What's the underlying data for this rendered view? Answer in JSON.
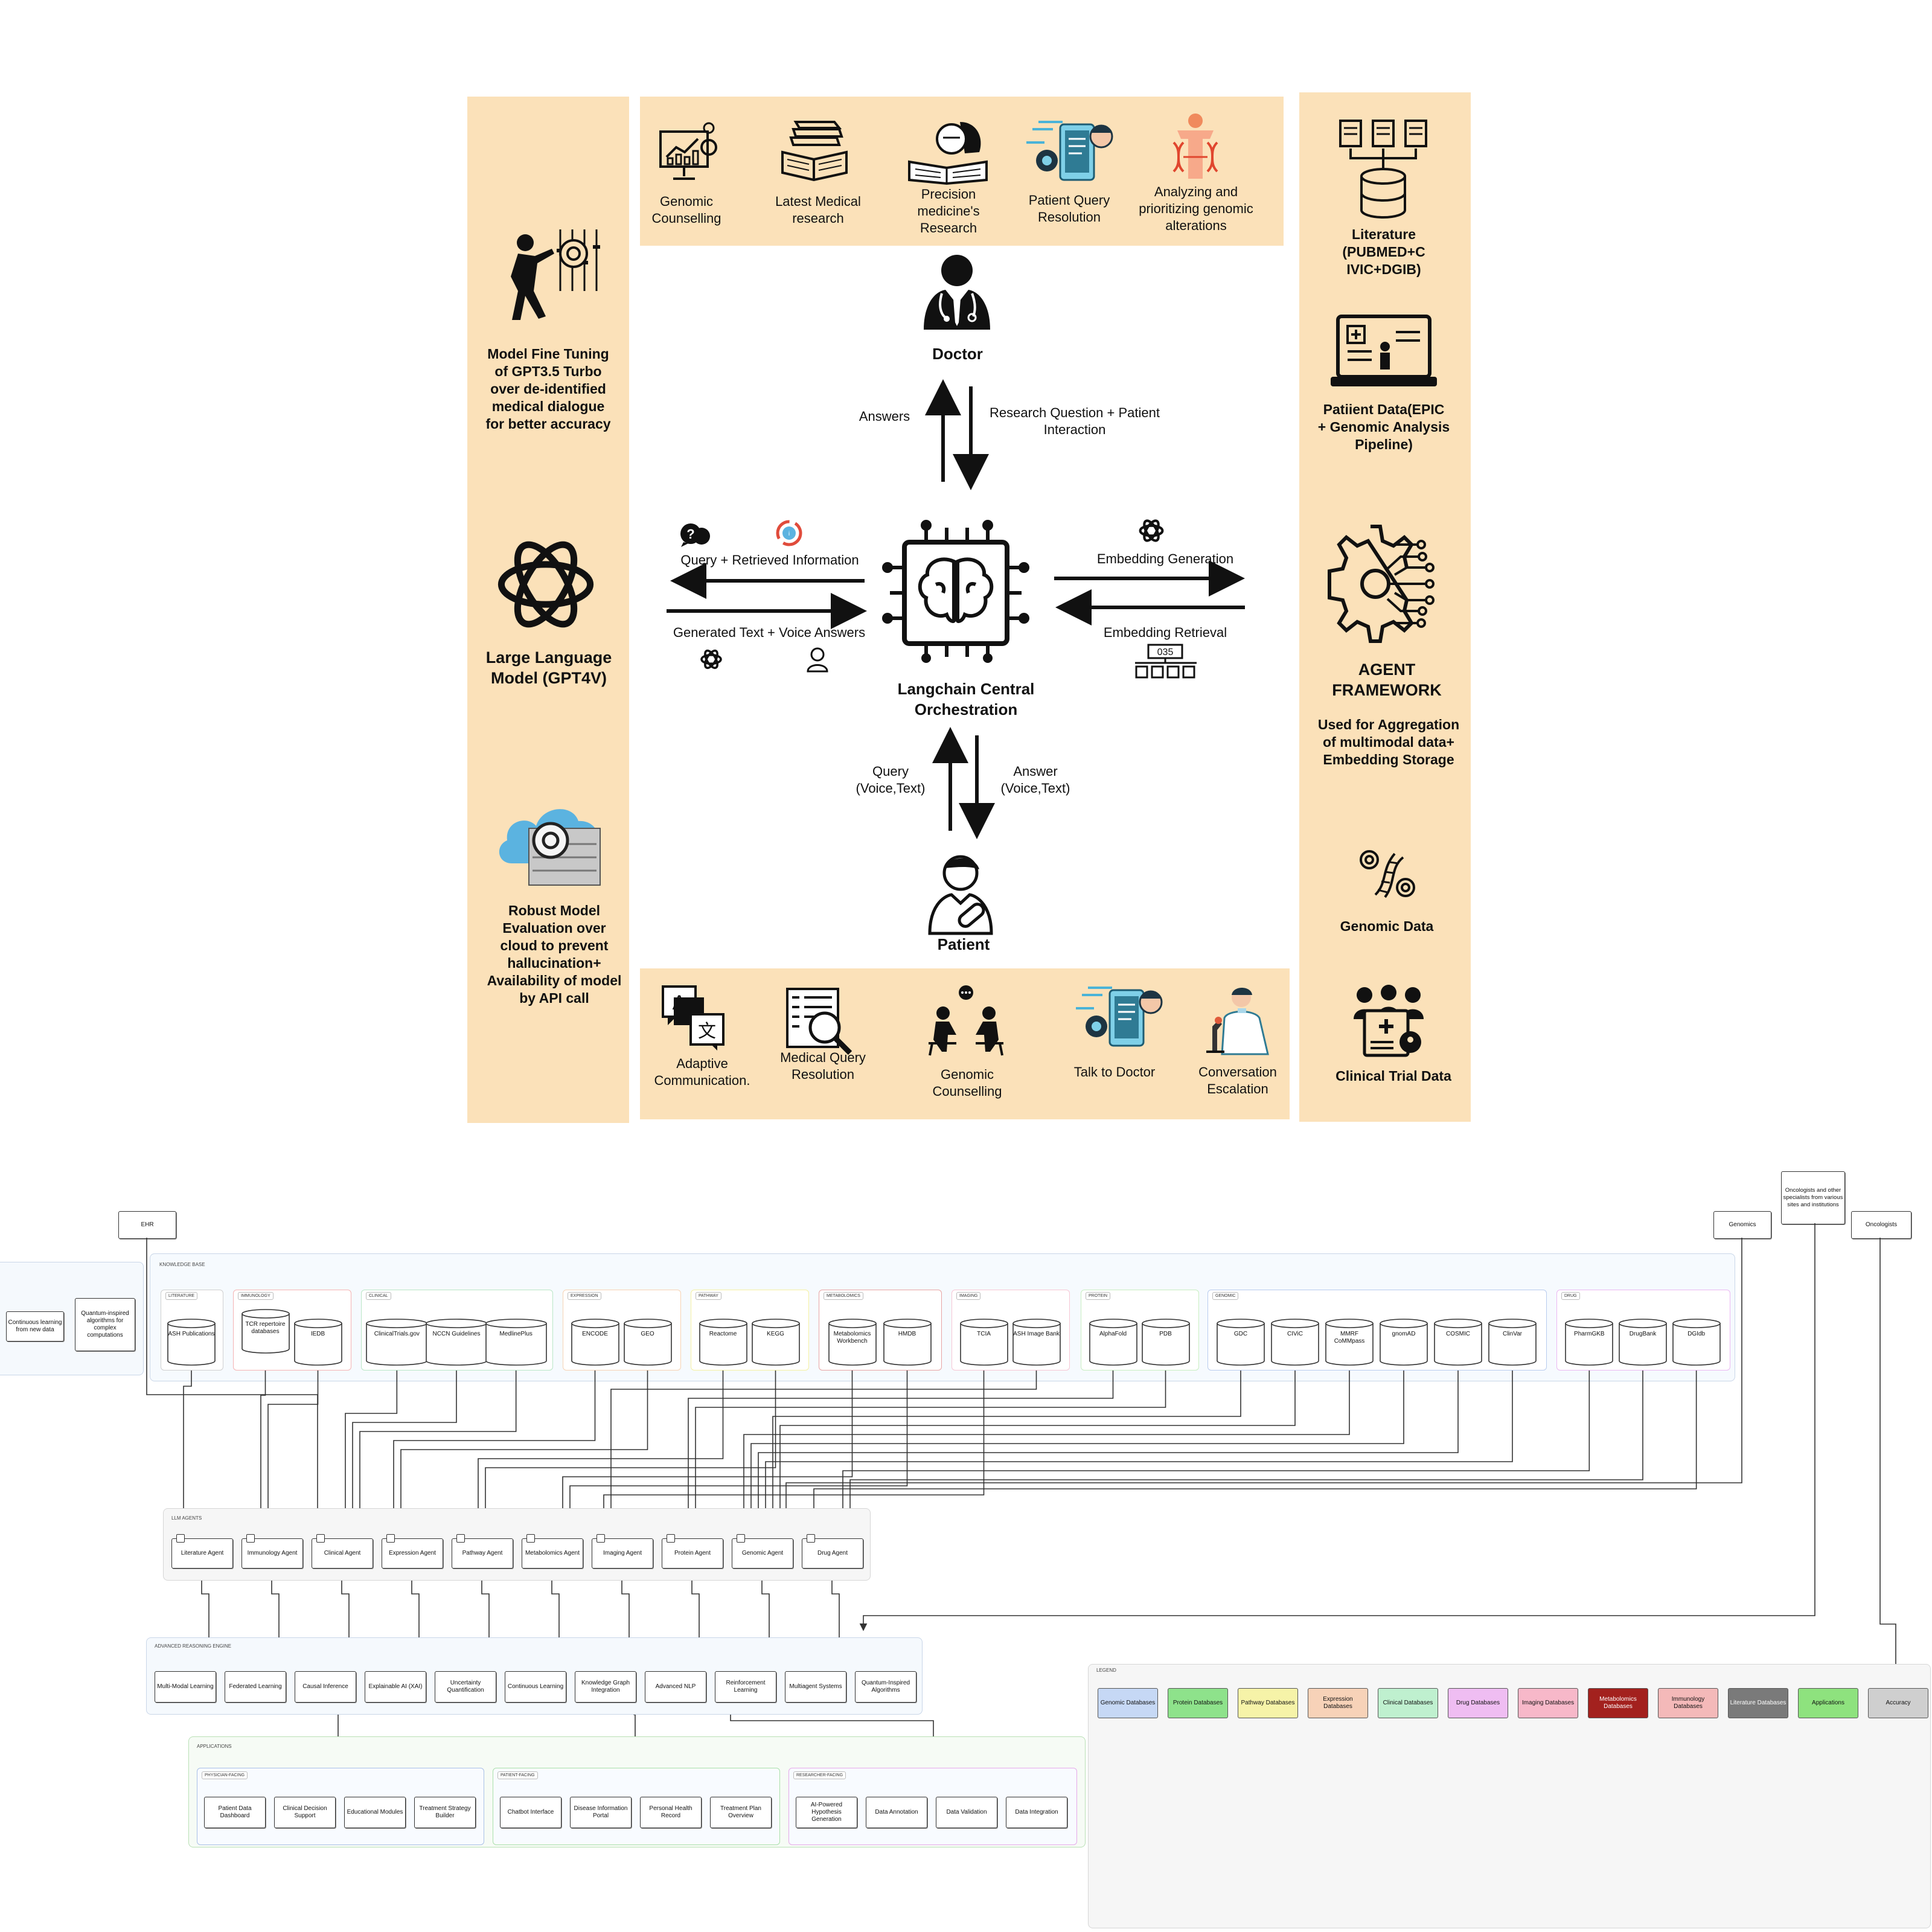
{
  "left_panel": {
    "finetune": "Model Fine Tuning of  GPT3.5 Turbo over de-identified medical dialogue for better accuracy",
    "llm": "Large Language Model (GPT4V)",
    "evaluation": "Robust Model Evaluation over cloud to prevent hallucination+ Availability of model by API call"
  },
  "right_panel": {
    "literature": "Literature (PUBMED+C IVIC+DGIB)",
    "patient_data": "Patiient Data(EPIC + Genomic Analysis Pipeline)",
    "agent_title": "AGENT FRAMEWORK",
    "agent_desc": "Used for Aggregation of multimodal data+ Embedding Storage",
    "genomic": "Genomic Data",
    "clinical": "Clinical Trial Data"
  },
  "top_panel": [
    {
      "label": "Genomic Counselling",
      "icon": "chart-presentation-icon"
    },
    {
      "label": "Latest Medical research",
      "icon": "books-icon"
    },
    {
      "label": "Precision medicine's Research",
      "icon": "reading-doctor-icon"
    },
    {
      "label": "Patient Query Resolution",
      "icon": "phone-chat-icon"
    },
    {
      "label": "Analyzing and prioritizing genomic alterations",
      "icon": "dna-human-icon"
    }
  ],
  "bottom_panel": [
    {
      "label": "Adaptive Communication.",
      "icon": "translate-icon"
    },
    {
      "label": "Medical Query Resolution",
      "icon": "document-search-icon"
    },
    {
      "label": "Genomic Counselling",
      "icon": "counselling-icon"
    },
    {
      "label": "Talk to Doctor",
      "icon": "phone-chat-icon"
    },
    {
      "label": "Conversation Escalation",
      "icon": "scientist-icon"
    }
  ],
  "center": {
    "doctor": "Doctor",
    "patient": "Patient",
    "orchestrator": "Langchain Central Orchestration",
    "answers": "Answers",
    "research_q": "Research Question + Patient Interaction",
    "query_retrieved": "Query + Retrieved Information",
    "generated": "Generated Text + Voice Answers",
    "embedding_gen": "Embedding Generation",
    "embedding_ret": "Embedding Retrieval",
    "query_vt": "Query (Voice,Text)",
    "answer_vt": "Answer (Voice,Text)",
    "counter": "035"
  },
  "lower": {
    "ehr": "EHR",
    "genomics": "Genomics",
    "oncologists": "Oncologists",
    "specialists": "Oncologists and other specialists from various sites and institutions",
    "left_group": [
      "Continuous learning from new data",
      "Quantum-inspired algorithms for complex computations"
    ],
    "kb_label": "KNOWLEDGE BASE",
    "kb_groups": [
      {
        "name": "LITERATURE",
        "dbs": [
          "ASH Publications"
        ]
      },
      {
        "name": "IMMUNOLOGY",
        "dbs": [
          "TCR repertoire databases",
          "IEDB"
        ]
      },
      {
        "name": "CLINICAL",
        "dbs": [
          "ClinicalTrials.gov",
          "NCCN Guidelines",
          "MedlinePlus"
        ]
      },
      {
        "name": "EXPRESSION",
        "dbs": [
          "ENCODE",
          "GEO"
        ]
      },
      {
        "name": "PATHWAY",
        "dbs": [
          "Reactome",
          "KEGG"
        ]
      },
      {
        "name": "METABOLOMICS",
        "dbs": [
          "Metabolomics Workbench",
          "HMDB"
        ]
      },
      {
        "name": "IMAGING",
        "dbs": [
          "TCIA",
          "ASH Image Bank"
        ]
      },
      {
        "name": "PROTEIN",
        "dbs": [
          "AlphaFold",
          "PDB"
        ]
      },
      {
        "name": "GENOMIC",
        "dbs": [
          "GDC",
          "CIViC",
          "MMRF CoMMpass",
          "gnomAD",
          "COSMIC",
          "ClinVar"
        ]
      },
      {
        "name": "DRUG",
        "dbs": [
          "PharmGKB",
          "DrugBank",
          "DGIdb"
        ]
      }
    ],
    "agents_label": "LLM AGENTS",
    "agents": [
      "Literature Agent",
      "Immunology Agent",
      "Clinical Agent",
      "Expression Agent",
      "Pathway Agent",
      "Metabolomics Agent",
      "Imaging Agent",
      "Protein Agent",
      "Genomic Agent",
      "Drug Agent"
    ],
    "reasoning_label": "ADVANCED REASONING ENGINE",
    "reasoning": [
      "Multi-Modal Learning",
      "Federated Learning",
      "Causal Inference",
      "Explainable AI (XAI)",
      "Uncertainty Quantification",
      "Continuous Learning",
      "Knowledge Graph Integration",
      "Advanced NLP",
      "Reinforcement Learning",
      "Multiagent Systems",
      "Quantum-Inspired Algorithms"
    ],
    "apps_label": "APPLICATIONS",
    "app_groups": [
      {
        "name": "PHYSICIAN-FACING",
        "items": [
          "Patient Data Dashboard",
          "Clinical Decision Support",
          "Educational Modules",
          "Treatment Strategy Builder"
        ]
      },
      {
        "name": "PATIENT-FACING",
        "items": [
          "Chatbot Interface",
          "Disease Information Portal",
          "Personal Health Record",
          "Treatment Plan Overview"
        ]
      },
      {
        "name": "RESEARCHER-FACING",
        "items": [
          "AI-Powered Hypothesis Generation",
          "Data Annotation",
          "Data Validation",
          "Data Integration"
        ]
      }
    ],
    "legend_label": "LEGEND",
    "legend": [
      {
        "label": "Genomic Databases",
        "color": "#c6d8f5"
      },
      {
        "label": "Protein Databases",
        "color": "#8ee28b"
      },
      {
        "label": "Pathway Databases",
        "color": "#f6f3a8"
      },
      {
        "label": "Expression Databases",
        "color": "#f7d2b8"
      },
      {
        "label": "Clinical Databases",
        "color": "#bff0cf"
      },
      {
        "label": "Drug Databases",
        "color": "#efbdf2"
      },
      {
        "label": "Imaging Databases",
        "color": "#f7b8c9"
      },
      {
        "label": "Metabolomics Databases",
        "color": "#a3211e"
      },
      {
        "label": "Immunology Databases",
        "color": "#f4b9b9"
      },
      {
        "label": "Literature Databases",
        "color": "#7a7a7a"
      },
      {
        "label": "Applications",
        "color": "#8ee27e"
      },
      {
        "label": "Accuracy",
        "color": "#cfcfcf"
      }
    ]
  }
}
